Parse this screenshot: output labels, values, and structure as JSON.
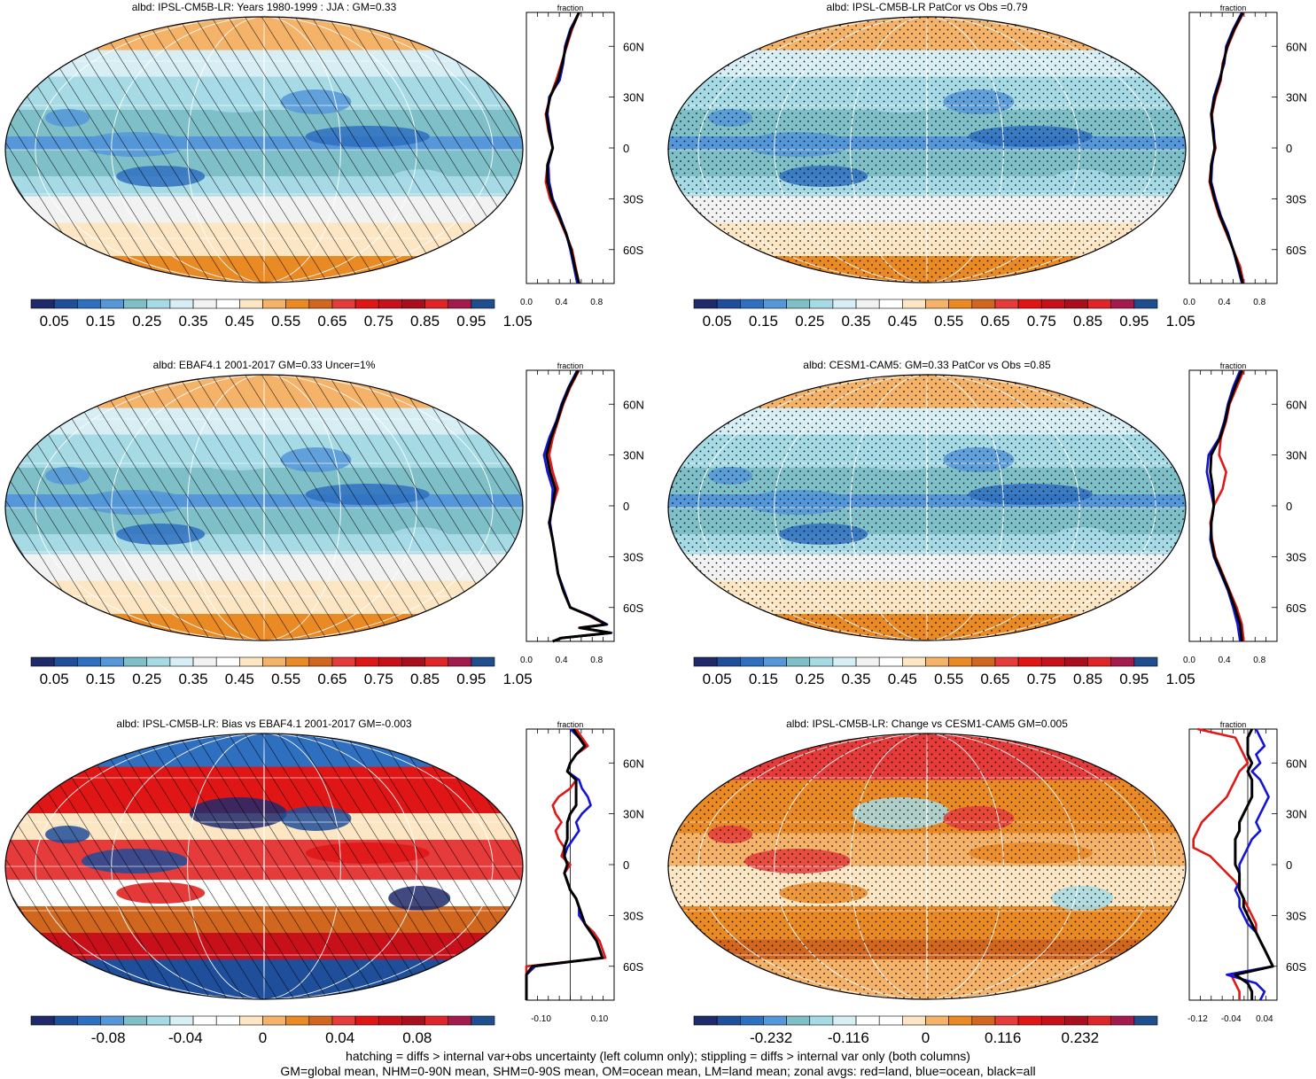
{
  "palette": {
    "abs": [
      "#1f2a6b",
      "#1f4e9a",
      "#2f6fbf",
      "#5597d8",
      "#7fc0c8",
      "#a6dbe6",
      "#d6eef4",
      "#f2f2f2",
      "#ffffff",
      "#fde6c4",
      "#f5b36a",
      "#ea8a25",
      "#d1661e",
      "#e53b3b",
      "#e01616",
      "#c8101b",
      "#a80e1d",
      "#e0252a",
      "#a31a4d",
      "#1f4e8f"
    ],
    "diff": [
      "#1f2a6b",
      "#1f4e9a",
      "#2f6fbf",
      "#5597d8",
      "#7fc0c8",
      "#a6dbe6",
      "#d6eef4",
      "#ffffff",
      "#ffffff",
      "#fde6c4",
      "#f5b36a",
      "#ea8a25",
      "#d1661e",
      "#e53b3b",
      "#e01616",
      "#c8101b",
      "#a80e1d",
      "#e0252a",
      "#a31a4d",
      "#1f4e8f"
    ],
    "land_line": "#e01818",
    "ocean_line": "#1414d8",
    "all_line": "#000000"
  },
  "panels": [
    {
      "title": "albd: IPSL-CM5B-LR: Years 1980-1999 : JJA : GM=0.33",
      "pattern": "hatch",
      "kind": "abs",
      "colorbar_labels": [
        "0.05",
        "0.15",
        "0.25",
        "0.35",
        "0.45",
        "0.55",
        "0.65",
        "0.75",
        "0.85",
        "0.95",
        "1.05"
      ]
    },
    {
      "title": "albd: IPSL-CM5B-LR PatCor vs Obs =0.79",
      "pattern": "stipple",
      "kind": "abs",
      "colorbar_labels": [
        "0.05",
        "0.15",
        "0.25",
        "0.35",
        "0.45",
        "0.55",
        "0.65",
        "0.75",
        "0.85",
        "0.95",
        "1.05"
      ]
    },
    {
      "title": "albd: EBAF4.1 2001-2017 GM=0.33 Uncer=1%",
      "pattern": "hatch",
      "kind": "abs",
      "colorbar_labels": [
        "0.05",
        "0.15",
        "0.25",
        "0.35",
        "0.45",
        "0.55",
        "0.65",
        "0.75",
        "0.85",
        "0.95",
        "1.05"
      ]
    },
    {
      "title": "albd: CESM1-CAM5: GM=0.33 PatCor vs Obs =0.85",
      "pattern": "stipple",
      "kind": "abs",
      "colorbar_labels": [
        "0.05",
        "0.15",
        "0.25",
        "0.35",
        "0.45",
        "0.55",
        "0.65",
        "0.75",
        "0.85",
        "0.95",
        "1.05"
      ]
    },
    {
      "title": "albd: IPSL-CM5B-LR: Bias vs EBAF4.1 2001-2017 GM=-0.003",
      "pattern": "hatch",
      "kind": "bias",
      "colorbar_labels": [
        "-0.08",
        "-0.04",
        "0",
        "0.04",
        "0.08"
      ]
    },
    {
      "title": "albd: IPSL-CM5B-LR: Change vs CESM1-CAM5 GM=0.005",
      "pattern": "stipple",
      "kind": "change",
      "colorbar_labels": [
        "-0.232",
        "-0.116",
        "0",
        "0.116",
        "0.232"
      ]
    }
  ],
  "chart_data": [
    {
      "type": "line",
      "title": "fraction",
      "lat_ticks": [
        "60N",
        "30N",
        "0",
        "30S",
        "60S"
      ],
      "x_ticks": [
        "0.0",
        "0.4",
        "0.8"
      ],
      "xlim": [
        0.0,
        1.0
      ],
      "ylim": [
        -80,
        80
      ],
      "lat": [
        80,
        70,
        60,
        50,
        40,
        30,
        20,
        10,
        0,
        -10,
        -20,
        -30,
        -40,
        -50,
        -60,
        -70,
        -80
      ],
      "series": [
        {
          "name": "land",
          "values": [
            0.6,
            0.52,
            0.46,
            0.4,
            0.34,
            0.27,
            0.22,
            0.25,
            0.3,
            0.24,
            0.22,
            0.27,
            0.36,
            0.44,
            0.52,
            0.56,
            0.6
          ]
        },
        {
          "name": "ocean",
          "values": [
            0.6,
            0.5,
            0.44,
            0.42,
            0.38,
            0.26,
            0.24,
            0.27,
            0.3,
            0.25,
            0.26,
            0.3,
            0.38,
            0.45,
            0.5,
            0.54,
            0.58
          ]
        },
        {
          "name": "all",
          "values": [
            0.6,
            0.51,
            0.45,
            0.41,
            0.36,
            0.27,
            0.23,
            0.26,
            0.3,
            0.24,
            0.24,
            0.29,
            0.37,
            0.45,
            0.51,
            0.55,
            0.6
          ]
        }
      ]
    },
    {
      "type": "line",
      "title": "fraction",
      "lat_ticks": [
        "60N",
        "30N",
        "0",
        "30S",
        "60S"
      ],
      "x_ticks": [
        "0.0",
        "0.4",
        "0.8"
      ],
      "xlim": [
        0.0,
        1.0
      ],
      "ylim": [
        -80,
        80
      ],
      "lat": [
        80,
        70,
        60,
        50,
        40,
        30,
        20,
        10,
        0,
        -10,
        -20,
        -30,
        -40,
        -50,
        -60,
        -70,
        -80
      ],
      "series": [
        {
          "name": "land",
          "values": [
            0.62,
            0.52,
            0.44,
            0.38,
            0.36,
            0.3,
            0.26,
            0.27,
            0.3,
            0.25,
            0.23,
            0.28,
            0.34,
            0.42,
            0.5,
            0.58,
            0.62
          ]
        },
        {
          "name": "ocean",
          "values": [
            0.6,
            0.5,
            0.42,
            0.4,
            0.34,
            0.28,
            0.25,
            0.28,
            0.29,
            0.26,
            0.25,
            0.3,
            0.36,
            0.44,
            0.5,
            0.55,
            0.6
          ]
        },
        {
          "name": "all",
          "values": [
            0.61,
            0.51,
            0.43,
            0.39,
            0.35,
            0.29,
            0.25,
            0.27,
            0.29,
            0.25,
            0.24,
            0.29,
            0.35,
            0.43,
            0.5,
            0.56,
            0.61
          ]
        }
      ]
    },
    {
      "type": "line",
      "title": "fraction",
      "lat_ticks": [
        "60N",
        "30N",
        "0",
        "30S",
        "60S"
      ],
      "x_ticks": [
        "0.0",
        "0.4",
        "0.8"
      ],
      "xlim": [
        0.0,
        1.0
      ],
      "ylim": [
        -80,
        80
      ],
      "lat": [
        80,
        70,
        60,
        50,
        40,
        30,
        20,
        10,
        0,
        -10,
        -20,
        -30,
        -40,
        -50,
        -60,
        -65,
        -70,
        -72,
        -75,
        -78,
        -80
      ],
      "series": [
        {
          "name": "land",
          "values": [
            0.6,
            0.5,
            0.42,
            0.36,
            0.3,
            0.26,
            0.3,
            0.36,
            0.3,
            0.26,
            0.3,
            0.33,
            0.36,
            0.42,
            0.5,
            0.72,
            0.9,
            0.6,
            0.95,
            0.4,
            0.3
          ]
        },
        {
          "name": "ocean",
          "values": [
            0.58,
            0.48,
            0.4,
            0.34,
            0.26,
            0.2,
            0.24,
            0.3,
            0.29,
            0.27,
            0.3,
            0.33,
            0.36,
            0.43,
            0.5,
            0.74,
            0.92,
            0.62,
            0.97,
            0.4,
            0.3
          ]
        },
        {
          "name": "all",
          "values": [
            0.59,
            0.49,
            0.41,
            0.35,
            0.28,
            0.23,
            0.27,
            0.33,
            0.3,
            0.26,
            0.3,
            0.33,
            0.36,
            0.42,
            0.5,
            0.73,
            0.91,
            0.61,
            0.96,
            0.4,
            0.3
          ]
        }
      ]
    },
    {
      "type": "line",
      "title": "fraction",
      "lat_ticks": [
        "60N",
        "30N",
        "0",
        "30S",
        "60S"
      ],
      "x_ticks": [
        "0.0",
        "0.4",
        "0.8"
      ],
      "xlim": [
        0.0,
        1.0
      ],
      "ylim": [
        -80,
        80
      ],
      "lat": [
        80,
        70,
        60,
        50,
        40,
        30,
        20,
        10,
        0,
        -10,
        -20,
        -30,
        -40,
        -50,
        -60,
        -70,
        -80
      ],
      "series": [
        {
          "name": "land",
          "values": [
            0.62,
            0.54,
            0.46,
            0.42,
            0.36,
            0.34,
            0.42,
            0.38,
            0.28,
            0.24,
            0.26,
            0.3,
            0.38,
            0.46,
            0.54,
            0.6,
            0.62
          ]
        },
        {
          "name": "ocean",
          "values": [
            0.58,
            0.5,
            0.44,
            0.4,
            0.34,
            0.22,
            0.2,
            0.24,
            0.28,
            0.25,
            0.24,
            0.28,
            0.36,
            0.44,
            0.5,
            0.55,
            0.58
          ]
        },
        {
          "name": "all",
          "values": [
            0.6,
            0.52,
            0.45,
            0.41,
            0.35,
            0.25,
            0.24,
            0.27,
            0.28,
            0.25,
            0.25,
            0.29,
            0.37,
            0.45,
            0.52,
            0.58,
            0.6
          ]
        }
      ]
    },
    {
      "type": "line",
      "title": "fraction",
      "lat_ticks": [
        "60N",
        "30N",
        "0",
        "30S",
        "60S"
      ],
      "x_ticks": [
        "-0.10",
        "0.10"
      ],
      "xlim": [
        -0.15,
        0.15
      ],
      "ylim": [
        -80,
        80
      ],
      "lat": [
        80,
        75,
        70,
        65,
        60,
        55,
        50,
        45,
        40,
        35,
        30,
        25,
        20,
        15,
        10,
        5,
        0,
        -5,
        -10,
        -15,
        -20,
        -25,
        -30,
        -35,
        -40,
        -45,
        -50,
        -55,
        -60,
        -65,
        -70,
        -75,
        -80
      ],
      "series": [
        {
          "name": "land",
          "values": [
            0.02,
            0.04,
            0.06,
            0.02,
            0.0,
            -0.01,
            0.02,
            0.0,
            -0.04,
            -0.06,
            -0.05,
            -0.03,
            -0.05,
            -0.04,
            -0.02,
            -0.03,
            0.0,
            -0.02,
            -0.01,
            0.0,
            0.02,
            0.03,
            0.04,
            0.05,
            0.08,
            0.1,
            0.11,
            0.12,
            -0.15,
            -0.15,
            -0.15,
            -0.15,
            -0.15
          ]
        },
        {
          "name": "ocean",
          "values": [
            0.0,
            0.03,
            0.05,
            0.02,
            0.0,
            -0.01,
            0.03,
            0.04,
            0.06,
            0.07,
            0.04,
            0.02,
            0.03,
            0.01,
            -0.01,
            -0.02,
            -0.01,
            -0.02,
            -0.01,
            0.0,
            0.02,
            0.03,
            0.03,
            0.05,
            0.07,
            0.09,
            0.1,
            0.11,
            -0.12,
            -0.15,
            -0.15,
            -0.15,
            -0.15
          ]
        },
        {
          "name": "all",
          "values": [
            0.01,
            0.03,
            0.05,
            0.02,
            0.0,
            -0.01,
            0.02,
            0.02,
            0.02,
            0.02,
            0.0,
            -0.01,
            -0.01,
            -0.01,
            -0.02,
            -0.02,
            -0.01,
            -0.02,
            -0.01,
            0.0,
            0.02,
            0.03,
            0.04,
            0.05,
            0.07,
            0.09,
            0.1,
            0.11,
            -0.13,
            -0.15,
            -0.15,
            -0.15,
            -0.15
          ]
        }
      ]
    },
    {
      "type": "line",
      "title": "fraction",
      "lat_ticks": [
        "60N",
        "30N",
        "0",
        "30S",
        "60S"
      ],
      "x_ticks": [
        "-0.12",
        "-0.04",
        "0.04"
      ],
      "xlim": [
        -0.14,
        0.07
      ],
      "ylim": [
        -80,
        80
      ],
      "lat": [
        80,
        75,
        70,
        65,
        60,
        55,
        50,
        45,
        40,
        35,
        30,
        25,
        20,
        15,
        10,
        5,
        0,
        -5,
        -10,
        -15,
        -20,
        -25,
        -30,
        -35,
        -40,
        -45,
        -50,
        -55,
        -60,
        -65,
        -70,
        -75,
        -80
      ],
      "series": [
        {
          "name": "land",
          "values": [
            -0.12,
            -0.03,
            -0.02,
            -0.01,
            0.0,
            -0.02,
            -0.03,
            -0.04,
            -0.05,
            -0.07,
            -0.09,
            -0.11,
            -0.12,
            -0.13,
            -0.13,
            -0.09,
            -0.07,
            -0.05,
            -0.03,
            -0.02,
            -0.01,
            0.0,
            0.01,
            0.02,
            0.02,
            0.03,
            0.04,
            0.05,
            0.06,
            -0.04,
            -0.03,
            -0.02,
            -0.02
          ]
        },
        {
          "name": "ocean",
          "values": [
            0.02,
            0.03,
            0.04,
            0.02,
            0.03,
            0.01,
            0.03,
            0.04,
            0.05,
            0.04,
            0.03,
            0.02,
            0.03,
            0.01,
            0.0,
            -0.01,
            -0.02,
            -0.02,
            -0.02,
            -0.03,
            -0.02,
            -0.02,
            -0.01,
            0.0,
            0.02,
            0.03,
            0.04,
            0.05,
            0.06,
            -0.05,
            0.02,
            0.04,
            0.03
          ]
        },
        {
          "name": "all",
          "values": [
            0.01,
            0.0,
            0.0,
            0.0,
            0.01,
            0.0,
            0.01,
            0.01,
            0.01,
            0.0,
            -0.01,
            -0.02,
            -0.02,
            -0.03,
            -0.03,
            -0.03,
            -0.03,
            -0.02,
            -0.02,
            -0.02,
            -0.01,
            -0.01,
            0.0,
            0.01,
            0.02,
            0.03,
            0.04,
            0.05,
            0.06,
            -0.03,
            0.0,
            0.01,
            0.01
          ]
        }
      ]
    }
  ],
  "footer": {
    "line1": "hatching = diffs > internal var+obs uncertainty (left column only); stippling = diffs > internal var only (both columns)",
    "line2": "GM=global mean, NHM=0-90N mean, SHM=0-90S mean, OM=ocean mean, LM=land mean; zonal avgs: red=land, blue=ocean, black=all"
  }
}
